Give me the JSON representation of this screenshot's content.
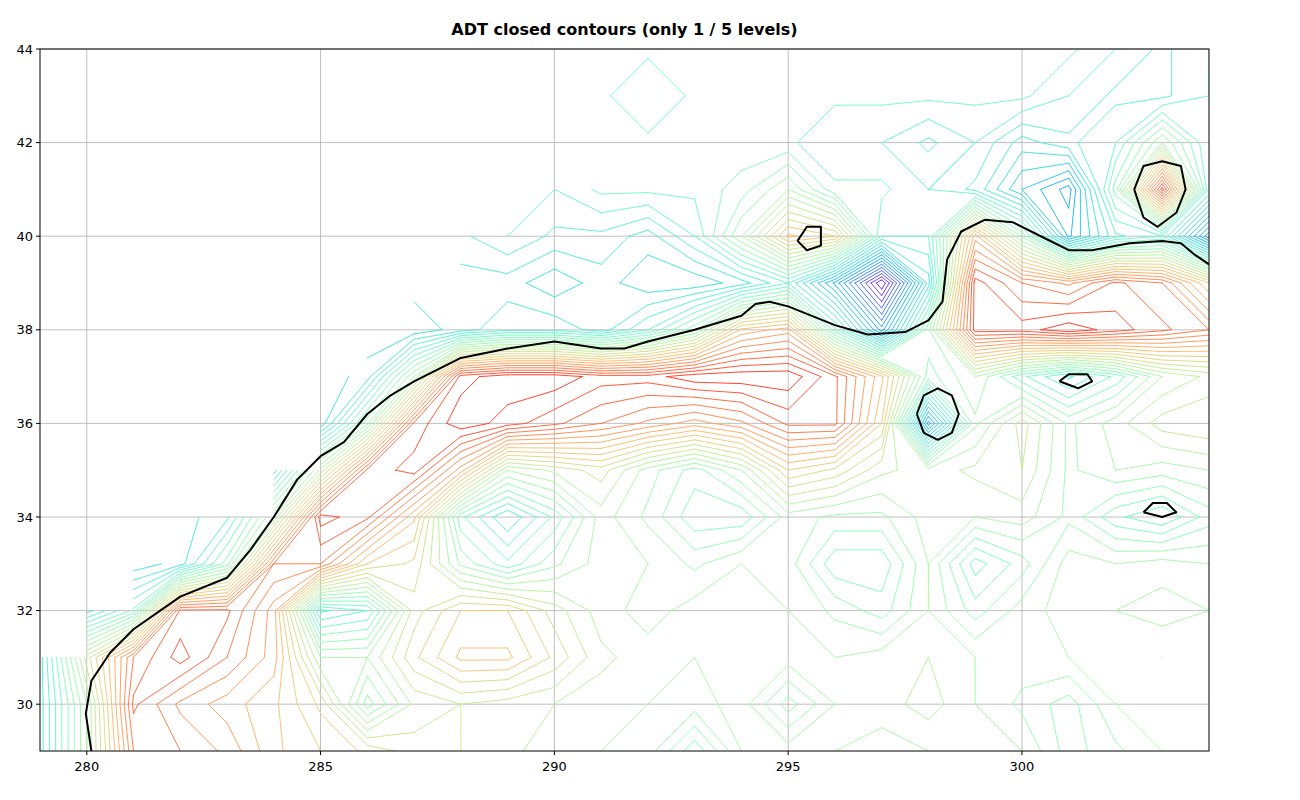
{
  "chart_data": {
    "type": "contour",
    "title": "ADT closed contours (only 1 / 5 levels)",
    "xlim": [
      279,
      304
    ],
    "ylim": [
      29,
      44
    ],
    "xticks": [
      280,
      285,
      290,
      295,
      300
    ],
    "yticks": [
      30,
      32,
      34,
      36,
      38,
      40,
      42,
      44
    ],
    "grid": true,
    "zlim": [
      -0.2,
      1.2
    ],
    "levels": [
      -0.2,
      -0.16,
      -0.12,
      -0.08,
      -0.04,
      0,
      0.04,
      0.08,
      0.12,
      0.16,
      0.2,
      0.24,
      0.28,
      0.32,
      0.36,
      0.4,
      0.44,
      0.48,
      0.52,
      0.56,
      0.6,
      0.64,
      0.68,
      0.72,
      0.76,
      0.8,
      0.84,
      0.88,
      0.92,
      0.96,
      1,
      1.04,
      1.08,
      1.12
    ],
    "x": [
      279,
      280,
      281,
      282,
      283,
      284,
      285,
      286,
      287,
      288,
      289,
      290,
      291,
      292,
      293,
      294,
      295,
      296,
      297,
      298,
      299,
      300,
      301,
      302,
      303,
      304
    ],
    "y": [
      29,
      30,
      31,
      32,
      33,
      34,
      35,
      36,
      37,
      38,
      39,
      40,
      41,
      42,
      43,
      44
    ],
    "z": [
      [
        0.3,
        0.6,
        1.0,
        1.0,
        0.95,
        0.85,
        0.8,
        0.75,
        0.7,
        0.68,
        0.65,
        0.62,
        0.6,
        0.58,
        0.45,
        0.6,
        0.62,
        0.6,
        0.58,
        0.6,
        0.62,
        0.6,
        0.5,
        0.55,
        0.6,
        0.62
      ],
      [
        0.3,
        0.6,
        1.05,
        0.95,
        0.9,
        0.85,
        0.75,
        0.5,
        0.65,
        0.68,
        0.66,
        0.64,
        0.62,
        0.6,
        0.58,
        0.62,
        0.5,
        0.6,
        0.62,
        0.66,
        0.6,
        0.55,
        0.5,
        0.6,
        0.62,
        0.6
      ],
      [
        0.3,
        0.7,
        1.0,
        1.1,
        1.0,
        0.9,
        0.6,
        0.6,
        0.75,
        0.85,
        0.85,
        0.75,
        0.65,
        0.62,
        0.6,
        0.6,
        0.62,
        0.6,
        0.62,
        0.64,
        0.6,
        0.58,
        0.6,
        0.62,
        0.64,
        0.6
      ],
      [
        null,
        0.3,
        0.45,
        1.05,
        1.05,
        0.9,
        0.35,
        0.4,
        0.7,
        0.8,
        0.8,
        0.7,
        0.62,
        0.58,
        0.62,
        0.6,
        0.6,
        0.55,
        0.5,
        0.6,
        0.5,
        0.58,
        0.62,
        0.6,
        0.58,
        0.6
      ],
      [
        null,
        null,
        0.25,
        0.3,
        0.5,
        1.0,
        1.0,
        0.8,
        0.75,
        0.55,
        0.45,
        0.55,
        0.62,
        0.6,
        0.55,
        0.6,
        0.58,
        0.45,
        0.45,
        0.6,
        0.42,
        0.5,
        0.62,
        0.6,
        0.62,
        0.6
      ],
      [
        null,
        null,
        null,
        0.3,
        0.35,
        0.6,
        1.1,
        1.05,
        0.85,
        0.45,
        0.32,
        0.45,
        0.62,
        0.55,
        0.45,
        0.45,
        0.58,
        0.55,
        0.55,
        0.62,
        0.6,
        0.62,
        0.55,
        0.45,
        0.4,
        0.5
      ],
      [
        null,
        null,
        null,
        null,
        null,
        0.3,
        0.65,
        1.05,
        1.1,
        0.9,
        0.6,
        0.65,
        0.7,
        0.58,
        0.5,
        0.6,
        0.8,
        0.75,
        0.65,
        0.62,
        0.65,
        0.68,
        0.55,
        0.6,
        0.58,
        0.6
      ],
      [
        null,
        null,
        null,
        null,
        null,
        null,
        0.25,
        0.55,
        1.05,
        1.15,
        1.1,
        1.05,
        1.0,
        0.95,
        0.9,
        0.95,
        1.05,
        1.05,
        0.8,
        0.1,
        0.55,
        0.7,
        0.55,
        0.62,
        0.7,
        0.72
      ],
      [
        null,
        null,
        null,
        null,
        null,
        null,
        0.25,
        0.3,
        0.6,
        1.1,
        1.15,
        1.15,
        1.1,
        1.1,
        1.15,
        1.15,
        1.15,
        1.05,
        0.85,
        0.5,
        0.6,
        0.45,
        0.35,
        0.45,
        0.6,
        0.65
      ],
      [
        null,
        null,
        null,
        null,
        null,
        null,
        null,
        0.25,
        0.25,
        0.3,
        0.35,
        0.35,
        0.3,
        0.4,
        0.55,
        0.85,
        0.9,
        0.45,
        0.1,
        0.55,
        1.1,
        1.1,
        1.15,
        1.1,
        1.05,
        1.0
      ],
      [
        null,
        null,
        null,
        null,
        null,
        null,
        null,
        null,
        0.3,
        0.3,
        0.3,
        0.25,
        0.3,
        0.25,
        0.25,
        0.3,
        0.4,
        0.15,
        -0.2,
        0.3,
        1.1,
        1.0,
        0.95,
        1.05,
        1.0,
        0.8
      ],
      [
        null,
        null,
        null,
        null,
        null,
        null,
        null,
        null,
        null,
        0.35,
        0.4,
        0.35,
        0.35,
        0.3,
        0.4,
        0.6,
        0.85,
        0.8,
        0.4,
        0.4,
        0.9,
        0.55,
        0.15,
        0.35,
        0.4,
        0.05
      ],
      [
        null,
        null,
        null,
        null,
        null,
        null,
        null,
        null,
        null,
        null,
        0.4,
        0.4,
        0.45,
        0.45,
        0.45,
        0.5,
        0.6,
        0.45,
        0.45,
        0.4,
        0.35,
        0.2,
        0.1,
        0.5,
        1.1,
        0.4
      ],
      [
        null,
        null,
        null,
        null,
        null,
        null,
        null,
        null,
        null,
        null,
        null,
        null,
        0.45,
        0.45,
        0.45,
        0.45,
        0.45,
        0.4,
        0.4,
        0.35,
        0.4,
        0.3,
        0.35,
        0.4,
        0.6,
        0.4
      ],
      [
        null,
        null,
        null,
        null,
        null,
        null,
        null,
        null,
        null,
        null,
        null,
        null,
        0.45,
        0.4,
        0.45,
        0.45,
        0.45,
        0.45,
        0.45,
        0.45,
        0.45,
        0.45,
        0.4,
        0.35,
        0.35,
        0.4
      ],
      [
        null,
        null,
        null,
        null,
        null,
        null,
        null,
        null,
        null,
        null,
        null,
        null,
        0.45,
        0.45,
        0.45,
        0.45,
        0.45,
        0.45,
        0.45,
        0.45,
        0.45,
        0.45,
        0.45,
        0.4,
        0.35,
        0.4
      ]
    ],
    "highlight_contours": [
      {
        "x": [
          280.1,
          279.98,
          280.1,
          280.5,
          281,
          282,
          283,
          283.5,
          284,
          284.5,
          285,
          285.5,
          286,
          286.5,
          287,
          288,
          289,
          290,
          291,
          291.5,
          292,
          293,
          294,
          294.3,
          294.6,
          295,
          296,
          296.7,
          297.5,
          298,
          298.3,
          298.4,
          298.7,
          299.2,
          299.8,
          300.5,
          301,
          301.5,
          302.3,
          303,
          303.4,
          303.7,
          304
        ],
        "y": [
          29,
          29.8,
          30.5,
          31.1,
          31.6,
          32.3,
          32.7,
          33.3,
          34,
          34.8,
          35.3,
          35.6,
          36.2,
          36.6,
          36.9,
          37.4,
          37.6,
          37.75,
          37.6,
          37.6,
          37.75,
          38,
          38.3,
          38.55,
          38.6,
          38.5,
          38.1,
          37.9,
          37.95,
          38.2,
          38.6,
          39.5,
          40.1,
          40.35,
          40.3,
          39.95,
          39.7,
          39.7,
          39.85,
          39.9,
          39.85,
          39.6,
          39.4
        ]
      },
      {
        "x": [
          295.2,
          295.4,
          295.7,
          295.7,
          295.4,
          295.2
        ],
        "y": [
          39.9,
          40.2,
          40.2,
          39.8,
          39.7,
          39.9
        ]
      },
      {
        "x": [
          297.75,
          297.9,
          298.2,
          298.5,
          298.65,
          298.5,
          298.2,
          297.9,
          297.75
        ],
        "y": [
          36.2,
          36.6,
          36.75,
          36.6,
          36.2,
          35.8,
          35.65,
          35.8,
          36.2
        ]
      },
      {
        "x": [
          302.4,
          302.6,
          303.0,
          303.4,
          303.5,
          303.3,
          302.9,
          302.6,
          302.4
        ],
        "y": [
          41.0,
          41.5,
          41.6,
          41.5,
          41.0,
          40.5,
          40.2,
          40.4,
          41.0
        ]
      },
      {
        "x": [
          300.8,
          301.0,
          301.4,
          301.5,
          301.2,
          300.8
        ],
        "y": [
          36.9,
          37.05,
          37.05,
          36.9,
          36.75,
          36.9
        ]
      },
      {
        "x": [
          302.6,
          302.8,
          303.1,
          303.3,
          303.0,
          302.6
        ],
        "y": [
          34.1,
          34.3,
          34.3,
          34.1,
          34.0,
          34.1
        ]
      }
    ]
  }
}
